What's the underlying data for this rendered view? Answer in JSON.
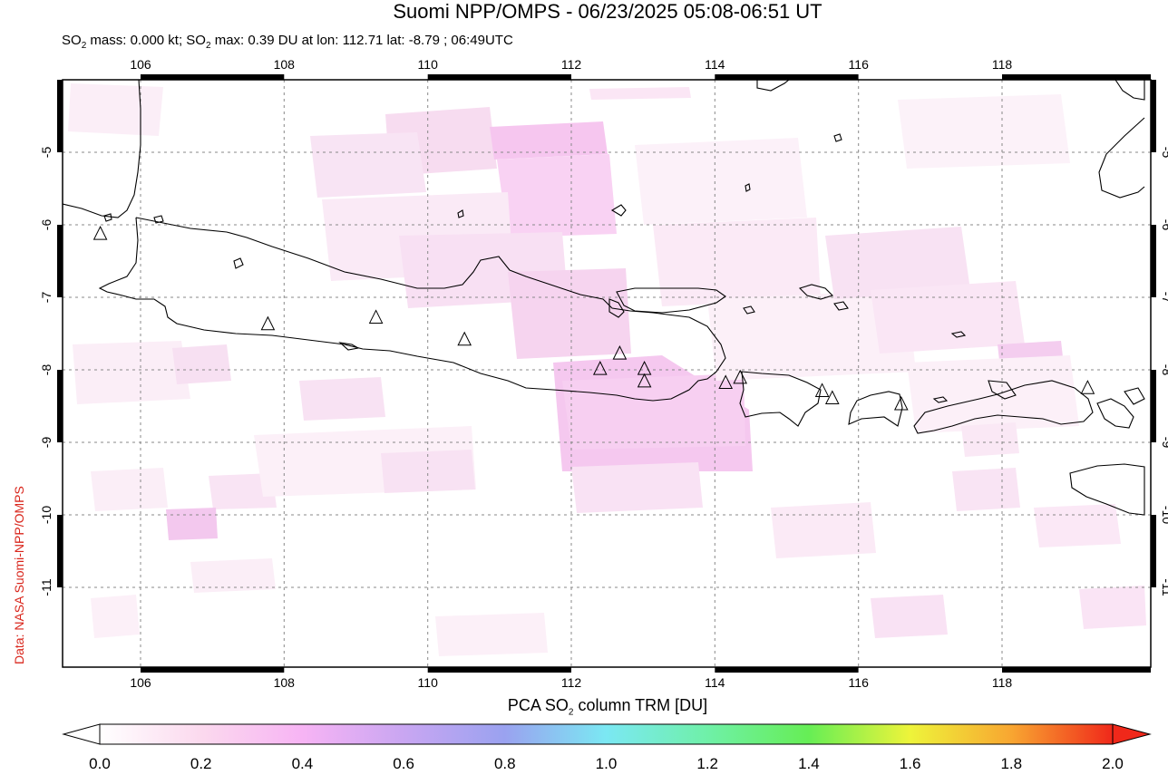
{
  "title": "Suomi NPP/OMPS - 06/23/2025 05:08-06:51 UT",
  "subtitle": {
    "mass_prefix": "SO",
    "mass_sub": "2",
    "mass_text": " mass: 0.000 kt; ",
    "max_prefix": "SO",
    "max_sub": "2",
    "max_text": " max: 0.39 DU at lon: 112.71 lat: -8.79 ; 06:49UTC"
  },
  "credit": "Data: NASA Suomi-NPP/OMPS",
  "colorbar": {
    "label_prefix": "PCA SO",
    "label_sub": "2",
    "label_suffix": " column TRM [DU]",
    "ticks": [
      "0.0",
      "0.2",
      "0.4",
      "0.6",
      "0.8",
      "1.0",
      "1.2",
      "1.4",
      "1.6",
      "1.8",
      "2.0"
    ],
    "range": [
      0.0,
      2.0
    ]
  },
  "map": {
    "lon_range": [
      104.9,
      119.9
    ],
    "lat_range": [
      -12.0,
      -4.0
    ],
    "lon_ticks": [
      "106",
      "108",
      "110",
      "112",
      "114",
      "116",
      "118"
    ],
    "lat_ticks": [
      "-5",
      "-6",
      "-7",
      "-8",
      "-9",
      "-10",
      "-11"
    ],
    "grid": "dotted",
    "volcano_marker": "triangle-icon",
    "volcanoes": [
      {
        "lon": 105.42,
        "lat": -6.1
      },
      {
        "lon": 107.73,
        "lat": -7.33
      },
      {
        "lon": 109.22,
        "lat": -7.24
      },
      {
        "lon": 110.44,
        "lat": -7.54
      },
      {
        "lon": 112.31,
        "lat": -7.94
      },
      {
        "lon": 112.58,
        "lat": -7.73
      },
      {
        "lon": 112.92,
        "lat": -7.94
      },
      {
        "lon": 112.92,
        "lat": -8.11
      },
      {
        "lon": 114.04,
        "lat": -8.13
      },
      {
        "lon": 114.24,
        "lat": -8.06
      },
      {
        "lon": 115.37,
        "lat": -8.24
      },
      {
        "lon": 115.51,
        "lat": -8.34
      },
      {
        "lon": 116.46,
        "lat": -8.42
      },
      {
        "lon": 119.03,
        "lat": -8.2
      }
    ]
  }
}
